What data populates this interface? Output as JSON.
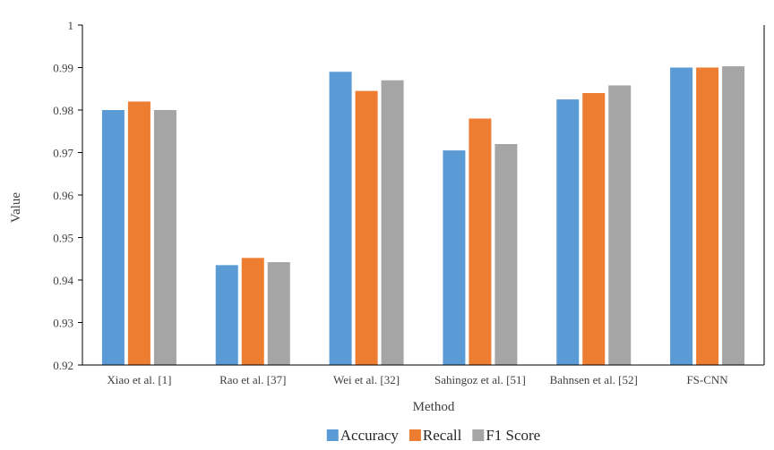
{
  "chart_data": {
    "type": "bar",
    "title": "",
    "xlabel": "Method",
    "ylabel": "Value",
    "ylim": [
      0.92,
      1.0
    ],
    "ytick_step": 0.01,
    "yticks": [
      "0.92",
      "0.93",
      "0.94",
      "0.95",
      "0.96",
      "0.97",
      "0.98",
      "0.99",
      "1"
    ],
    "grid": false,
    "legend_position": "bottom",
    "categories": [
      "Xiao et al. [1]",
      "Rao et al. [37]",
      "Wei et al. [32]",
      "Sahingoz et al. [51]",
      "Bahnsen et al. [52]",
      "FS-CNN"
    ],
    "series": [
      {
        "name": "Accuracy",
        "color": "#5B9BD5",
        "values": [
          0.98,
          0.9435,
          0.989,
          0.9705,
          0.9825,
          0.99
        ]
      },
      {
        "name": "Recall",
        "color": "#ED7D31",
        "values": [
          0.982,
          0.9452,
          0.9845,
          0.978,
          0.984,
          0.99
        ]
      },
      {
        "name": "F1 Score",
        "color": "#A5A5A5",
        "values": [
          0.98,
          0.9442,
          0.987,
          0.972,
          0.9858,
          0.9903
        ]
      }
    ]
  }
}
